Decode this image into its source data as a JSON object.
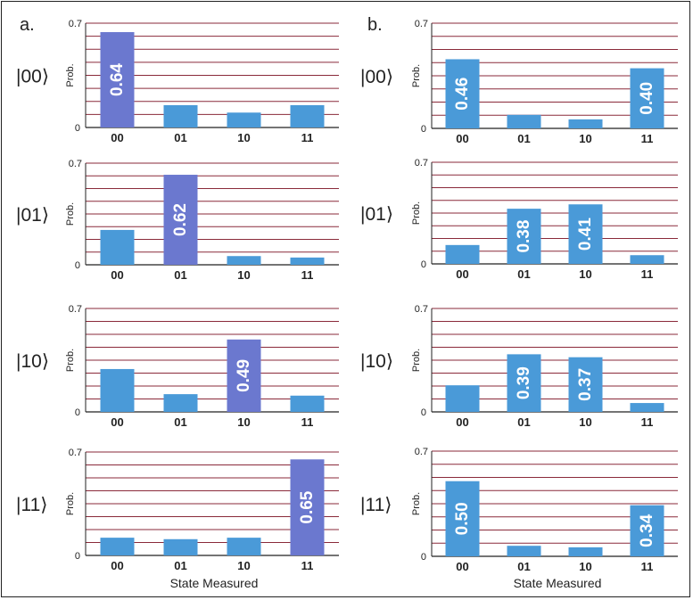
{
  "colors": {
    "bar": "#4a9ad8",
    "highlight": "#6b78cf",
    "grid": "#8a2a3a",
    "axis": "#222222",
    "label": "#ffffff"
  },
  "panel_labels": [
    "a.",
    "b."
  ],
  "x_title": "State Measured",
  "chart_data": [
    {
      "type": "bar",
      "panel": "a.",
      "state": "|00⟩",
      "categories": [
        "00",
        "01",
        "10",
        "11"
      ],
      "values": [
        0.64,
        0.15,
        0.1,
        0.15
      ],
      "ylabel": "Prob.",
      "ylim": [
        0,
        0.7
      ],
      "yticks": [
        "0",
        "0.7"
      ],
      "labeled": [
        0
      ],
      "labels": [
        "0.64"
      ],
      "highlight": [
        0
      ],
      "grid": true
    },
    {
      "type": "bar",
      "panel": "a.",
      "state": "|01⟩",
      "categories": [
        "00",
        "01",
        "10",
        "11"
      ],
      "values": [
        0.24,
        0.62,
        0.06,
        0.05
      ],
      "ylabel": "Prob.",
      "ylim": [
        0,
        0.7
      ],
      "yticks": [
        "0",
        "0.7"
      ],
      "labeled": [
        1
      ],
      "labels": [
        "0.62"
      ],
      "highlight": [
        1
      ],
      "grid": true
    },
    {
      "type": "bar",
      "panel": "a.",
      "state": "|10⟩",
      "categories": [
        "00",
        "01",
        "10",
        "11"
      ],
      "values": [
        0.29,
        0.12,
        0.49,
        0.11
      ],
      "ylabel": "Prob.",
      "ylim": [
        0,
        0.7
      ],
      "yticks": [
        "0",
        "0.7"
      ],
      "labeled": [
        2
      ],
      "labels": [
        "0.49"
      ],
      "highlight": [
        2
      ],
      "grid": true
    },
    {
      "type": "bar",
      "panel": "a.",
      "state": "|11⟩",
      "categories": [
        "00",
        "01",
        "10",
        "11"
      ],
      "values": [
        0.12,
        0.11,
        0.12,
        0.65
      ],
      "ylabel": "Prob.",
      "ylim": [
        0,
        0.7
      ],
      "yticks": [
        "0",
        "0.7"
      ],
      "labeled": [
        3
      ],
      "labels": [
        "0.65"
      ],
      "highlight": [
        3
      ],
      "grid": true
    },
    {
      "type": "bar",
      "panel": "b.",
      "state": "|00⟩",
      "categories": [
        "00",
        "01",
        "10",
        "11"
      ],
      "values": [
        0.46,
        0.09,
        0.06,
        0.4
      ],
      "ylabel": "Prob.",
      "ylim": [
        0,
        0.7
      ],
      "yticks": [
        "0",
        "0.7"
      ],
      "labeled": [
        0,
        3
      ],
      "labels": [
        "0.46",
        "0.40"
      ],
      "highlight": [],
      "grid": true
    },
    {
      "type": "bar",
      "panel": "b.",
      "state": "|01⟩",
      "categories": [
        "00",
        "01",
        "10",
        "11"
      ],
      "values": [
        0.13,
        0.38,
        0.41,
        0.06
      ],
      "ylabel": "Prob.",
      "ylim": [
        0,
        0.7
      ],
      "yticks": [
        "0",
        "0.7"
      ],
      "labeled": [
        1,
        2
      ],
      "labels": [
        "0.38",
        "0.41"
      ],
      "highlight": [],
      "grid": true
    },
    {
      "type": "bar",
      "panel": "b.",
      "state": "|10⟩",
      "categories": [
        "00",
        "01",
        "10",
        "11"
      ],
      "values": [
        0.18,
        0.39,
        0.37,
        0.06
      ],
      "ylabel": "Prob.",
      "ylim": [
        0,
        0.7
      ],
      "yticks": [
        "0",
        "0.7"
      ],
      "labeled": [
        1,
        2
      ],
      "labels": [
        "0.39",
        "0.37"
      ],
      "highlight": [],
      "grid": true
    },
    {
      "type": "bar",
      "panel": "b.",
      "state": "|11⟩",
      "categories": [
        "00",
        "01",
        "10",
        "11"
      ],
      "values": [
        0.5,
        0.07,
        0.06,
        0.34
      ],
      "ylabel": "Prob.",
      "ylim": [
        0,
        0.7
      ],
      "yticks": [
        "0",
        "0.7"
      ],
      "labeled": [
        0,
        3
      ],
      "labels": [
        "0.50",
        "0.34"
      ],
      "highlight": [],
      "grid": true
    }
  ]
}
